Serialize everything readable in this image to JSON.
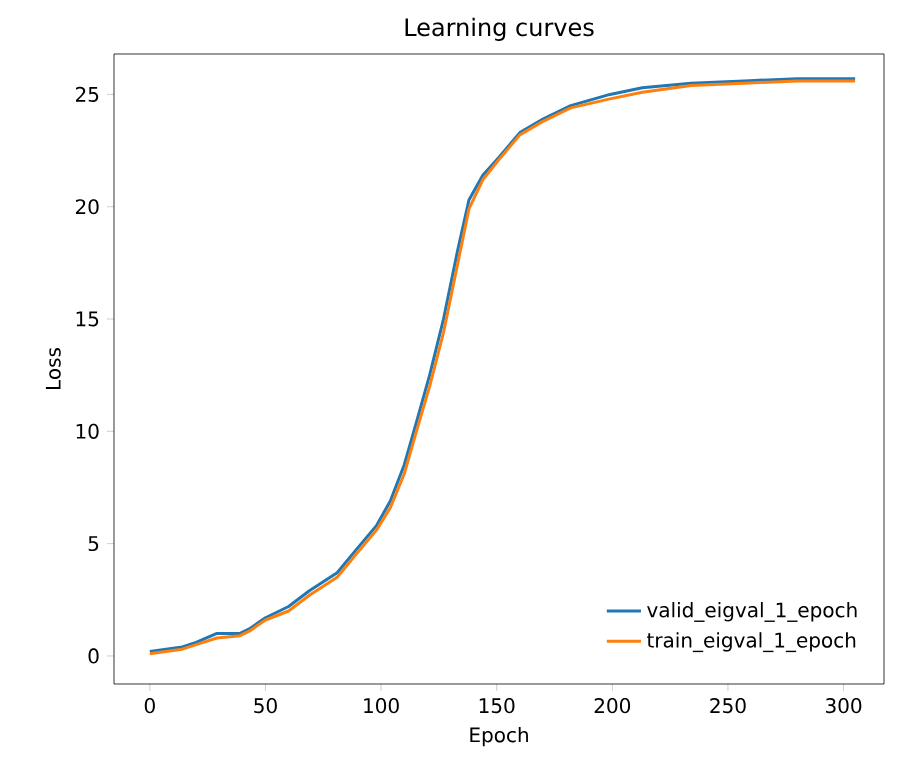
{
  "chart_data": {
    "type": "line",
    "title": "Learning curves",
    "xlabel": "Epoch",
    "ylabel": "Loss",
    "xlim": [
      -15.5,
      317.5
    ],
    "ylim": [
      -1.25,
      26.8
    ],
    "xticks": [
      0,
      50,
      100,
      150,
      200,
      250,
      300
    ],
    "yticks": [
      0,
      5,
      10,
      15,
      20,
      25
    ],
    "legend": "bottom right",
    "grid": false,
    "marker": "none",
    "line_style": "solid",
    "series": [
      {
        "name": "valid_eigval_1_epoch",
        "color": "#1f77b4",
        "x": [
          0,
          14,
          20,
          29,
          39,
          43,
          50,
          60,
          69,
          81,
          89,
          98,
          104,
          110,
          115,
          121,
          127,
          133,
          138,
          144,
          151,
          160,
          170,
          182,
          199,
          213,
          234,
          257,
          280,
          305
        ],
        "values": [
          0.2,
          0.4,
          0.6,
          1.0,
          1.0,
          1.2,
          1.7,
          2.2,
          2.9,
          3.7,
          4.7,
          5.8,
          6.9,
          8.5,
          10.3,
          12.5,
          15.0,
          18.0,
          20.3,
          21.4,
          22.2,
          23.3,
          23.9,
          24.5,
          25.0,
          25.3,
          25.5,
          25.6,
          25.7,
          25.7
        ]
      },
      {
        "name": "train_eigval_1_epoch",
        "color": "#ff7f0e",
        "x": [
          0,
          14,
          20,
          29,
          39,
          43,
          50,
          60,
          69,
          81,
          89,
          98,
          104,
          110,
          115,
          121,
          127,
          133,
          138,
          144,
          151,
          160,
          170,
          182,
          199,
          213,
          234,
          257,
          280,
          305
        ],
        "values": [
          0.1,
          0.3,
          0.5,
          0.8,
          0.9,
          1.1,
          1.6,
          2.0,
          2.7,
          3.5,
          4.5,
          5.6,
          6.6,
          8.1,
          9.9,
          12.0,
          14.4,
          17.4,
          19.9,
          21.2,
          22.1,
          23.2,
          23.8,
          24.4,
          24.8,
          25.1,
          25.4,
          25.5,
          25.6,
          25.6
        ]
      }
    ]
  }
}
